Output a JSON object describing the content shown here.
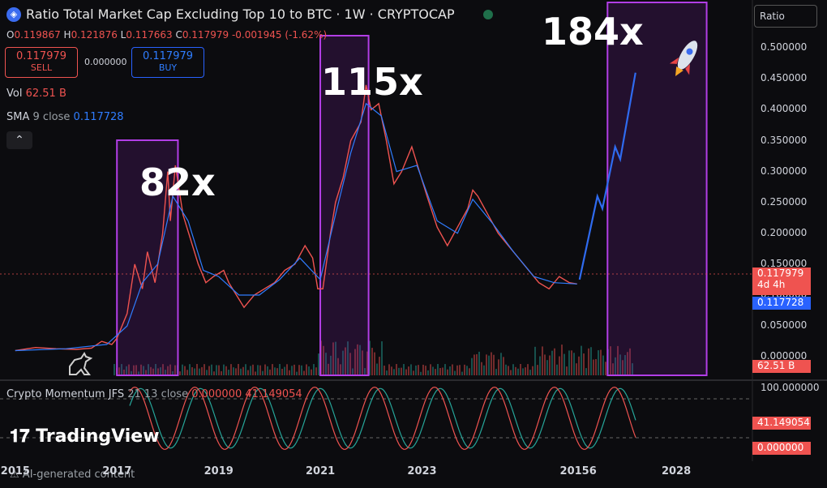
{
  "header": {
    "title": "Ratio Total Market Cap Excluding Top 10 to BTC · 1W · CRYPTOCAP",
    "logo_glyph": "◈",
    "ohlc": {
      "o_label": "O",
      "o": "0.119867",
      "h_label": "H",
      "h": "0.121876",
      "l_label": "L",
      "l": "0.117663",
      "c_label": "C",
      "c": "0.117979",
      "change": "-0.001945 (-1.62%)"
    },
    "sell": {
      "price": "0.117979",
      "label": "SELL"
    },
    "buy": {
      "price": "0.117979",
      "label": "BUY"
    },
    "spread": "0.000000",
    "vol_label": "Vol",
    "vol_value": "62.51 B",
    "sma_label": "SMA",
    "sma_params": "9 close",
    "sma_value": "0.117728",
    "collapse_glyph": "⌃"
  },
  "annotations": {
    "a1": "82x",
    "a2": "115x",
    "a3": "184x"
  },
  "scale_mode": "Ratio",
  "price_labels": {
    "last": "0.117979",
    "countdown": "4d 4h",
    "sma": "0.117728",
    "volume": "62.51 B",
    "ind_top": "100.000000",
    "ind_v1": "41.149054",
    "ind_v2": "0.000000"
  },
  "indicator": {
    "name": "Crypto Momentum JFS",
    "params": "21 13 close",
    "v1": "0.000000",
    "v2": "41.149054"
  },
  "branding": {
    "tradingview": "TradingView",
    "ai_note": "AI-generated content"
  },
  "colors": {
    "up": "#26a69a",
    "down": "#ef5350",
    "sma": "#2f7dff",
    "box": "#b23ee6",
    "projection": "#2f6bf0"
  },
  "chart_data": {
    "type": "line",
    "title": "Ratio Total Market Cap Excluding Top 10 to BTC · 1W · CRYPTOCAP",
    "xlabel": "",
    "ylabel": "",
    "x_ticks": [
      "2015",
      "2017",
      "2019",
      "2021",
      "2023",
      "20156",
      "2028"
    ],
    "y_ticks": [
      "0.500000",
      "0.450000",
      "0.400000",
      "0.350000",
      "0.300000",
      "0.250000",
      "0.200000",
      "0.150000",
      "0.100000",
      "0.050000",
      "0.000000"
    ],
    "ylim": [
      -0.03,
      0.52
    ],
    "xlim": [
      2014.7,
      2029.5
    ],
    "grid": false,
    "series": [
      {
        "name": "Ratio",
        "values": [
          [
            2015.0,
            0.01
          ],
          [
            2015.4,
            0.015
          ],
          [
            2015.8,
            0.013
          ],
          [
            2016.2,
            0.012
          ],
          [
            2016.5,
            0.014
          ],
          [
            2016.7,
            0.025
          ],
          [
            2016.9,
            0.02
          ],
          [
            2017.0,
            0.03
          ],
          [
            2017.2,
            0.07
          ],
          [
            2017.35,
            0.15
          ],
          [
            2017.5,
            0.11
          ],
          [
            2017.6,
            0.17
          ],
          [
            2017.75,
            0.12
          ],
          [
            2017.9,
            0.2
          ],
          [
            2018.0,
            0.3
          ],
          [
            2018.05,
            0.22
          ],
          [
            2018.15,
            0.31
          ],
          [
            2018.3,
            0.23
          ],
          [
            2018.45,
            0.19
          ],
          [
            2018.6,
            0.15
          ],
          [
            2018.75,
            0.12
          ],
          [
            2018.9,
            0.13
          ],
          [
            2019.1,
            0.14
          ],
          [
            2019.2,
            0.12
          ],
          [
            2019.35,
            0.1
          ],
          [
            2019.5,
            0.08
          ],
          [
            2019.7,
            0.1
          ],
          [
            2019.9,
            0.11
          ],
          [
            2020.1,
            0.12
          ],
          [
            2020.3,
            0.14
          ],
          [
            2020.5,
            0.15
          ],
          [
            2020.7,
            0.18
          ],
          [
            2020.85,
            0.16
          ],
          [
            2020.95,
            0.11
          ],
          [
            2021.05,
            0.11
          ],
          [
            2021.2,
            0.2
          ],
          [
            2021.3,
            0.25
          ],
          [
            2021.45,
            0.29
          ],
          [
            2021.6,
            0.35
          ],
          [
            2021.8,
            0.38
          ],
          [
            2021.9,
            0.44
          ],
          [
            2022.0,
            0.4
          ],
          [
            2022.15,
            0.41
          ],
          [
            2022.3,
            0.35
          ],
          [
            2022.45,
            0.28
          ],
          [
            2022.6,
            0.3
          ],
          [
            2022.8,
            0.34
          ],
          [
            2022.95,
            0.3
          ],
          [
            2023.1,
            0.26
          ],
          [
            2023.3,
            0.21
          ],
          [
            2023.5,
            0.18
          ],
          [
            2023.7,
            0.21
          ],
          [
            2023.9,
            0.24
          ],
          [
            2024.0,
            0.27
          ],
          [
            2024.1,
            0.26
          ],
          [
            2024.3,
            0.23
          ],
          [
            2024.5,
            0.2
          ],
          [
            2024.7,
            0.18
          ],
          [
            2024.9,
            0.16
          ],
          [
            2025.1,
            0.14
          ],
          [
            2025.3,
            0.12
          ],
          [
            2025.5,
            0.11
          ],
          [
            2025.7,
            0.13
          ],
          [
            2025.9,
            0.12
          ],
          [
            2026.05,
            0.118
          ]
        ]
      },
      {
        "name": "SMA 9 close",
        "values": [
          [
            2015.0,
            0.01
          ],
          [
            2016.0,
            0.013
          ],
          [
            2016.8,
            0.02
          ],
          [
            2017.2,
            0.05
          ],
          [
            2017.5,
            0.12
          ],
          [
            2017.8,
            0.15
          ],
          [
            2018.1,
            0.26
          ],
          [
            2018.4,
            0.22
          ],
          [
            2018.7,
            0.14
          ],
          [
            2019.0,
            0.13
          ],
          [
            2019.4,
            0.1
          ],
          [
            2019.8,
            0.1
          ],
          [
            2020.2,
            0.125
          ],
          [
            2020.6,
            0.16
          ],
          [
            2021.0,
            0.125
          ],
          [
            2021.3,
            0.23
          ],
          [
            2021.6,
            0.33
          ],
          [
            2021.9,
            0.41
          ],
          [
            2022.2,
            0.39
          ],
          [
            2022.5,
            0.3
          ],
          [
            2022.9,
            0.31
          ],
          [
            2023.3,
            0.22
          ],
          [
            2023.7,
            0.2
          ],
          [
            2024.0,
            0.255
          ],
          [
            2024.4,
            0.215
          ],
          [
            2024.8,
            0.17
          ],
          [
            2025.2,
            0.13
          ],
          [
            2025.6,
            0.12
          ],
          [
            2026.05,
            0.118
          ]
        ]
      },
      {
        "name": "Projection",
        "values": [
          [
            2026.1,
            0.125
          ],
          [
            2026.45,
            0.26
          ],
          [
            2026.55,
            0.24
          ],
          [
            2026.8,
            0.34
          ],
          [
            2026.9,
            0.32
          ],
          [
            2027.2,
            0.46
          ]
        ]
      }
    ],
    "highlight_boxes": [
      {
        "label": "82x",
        "x_range": [
          2017.0,
          2018.2
        ]
      },
      {
        "label": "115x",
        "x_range": [
          2021.0,
          2021.95
        ]
      },
      {
        "label": "184x",
        "x_range": [
          2026.65,
          2028.6
        ]
      }
    ],
    "indicator_ylim": [
      0,
      100
    ]
  }
}
